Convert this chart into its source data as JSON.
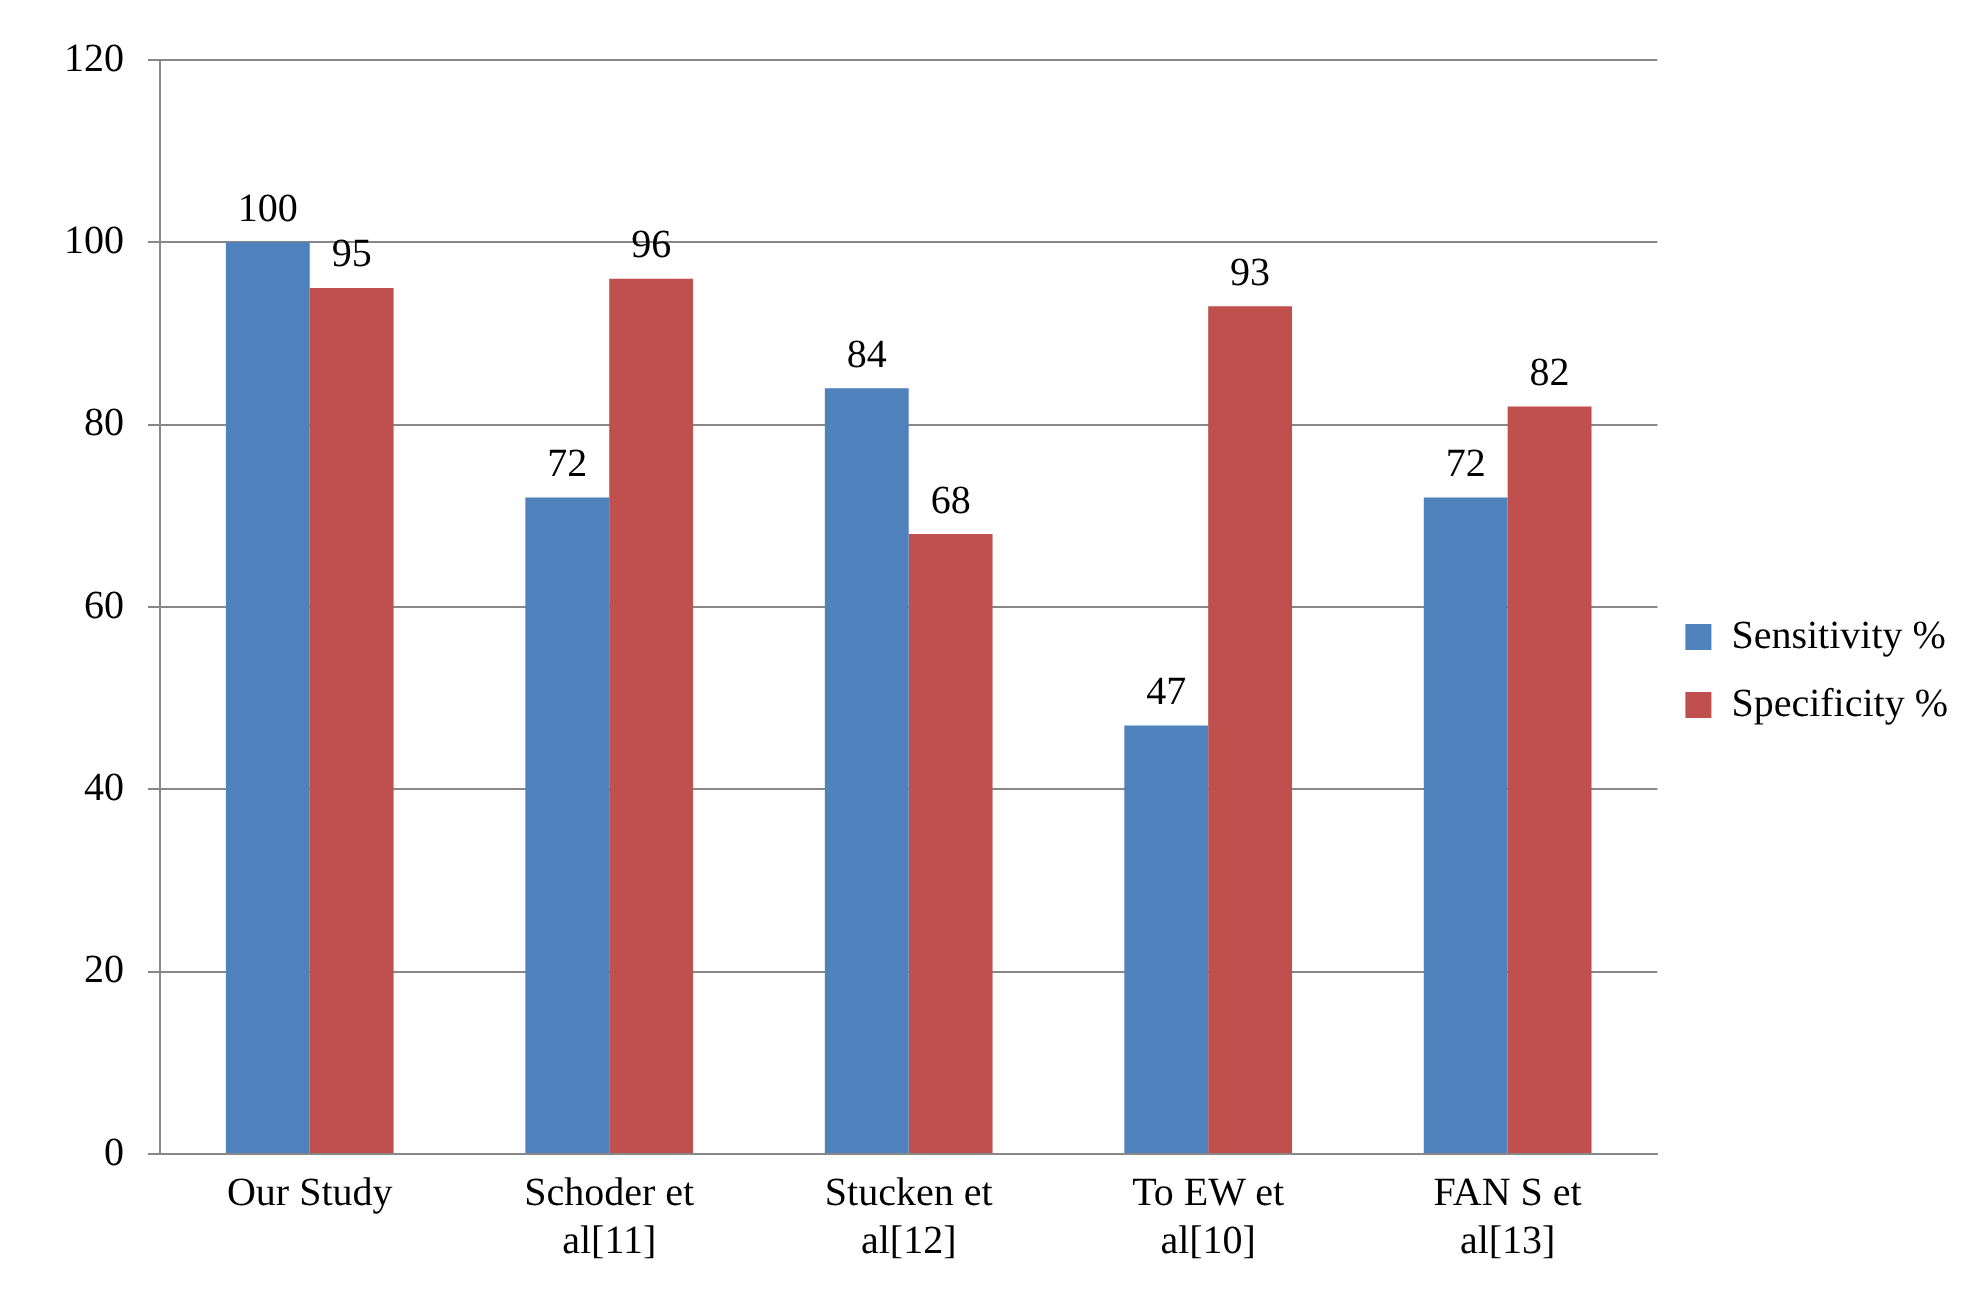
{
  "chart_data": {
    "type": "bar",
    "categories": [
      "Our Study",
      "Schoder et al[11]",
      "Stucken et al[12]",
      "To EW et al[10]",
      "FAN S et al[13]"
    ],
    "series": [
      {
        "name": "Sensitivity %",
        "color": "#4f81bd",
        "values": [
          100,
          72,
          84,
          47,
          72
        ]
      },
      {
        "name": "Specificity %",
        "color": "#c0504d",
        "values": [
          95,
          96,
          68,
          93,
          82
        ]
      }
    ],
    "ylim": [
      0,
      120
    ],
    "yticks": [
      0,
      20,
      40,
      60,
      80,
      100,
      120
    ],
    "grid": "y",
    "legend": "right",
    "data_labels": true
  }
}
